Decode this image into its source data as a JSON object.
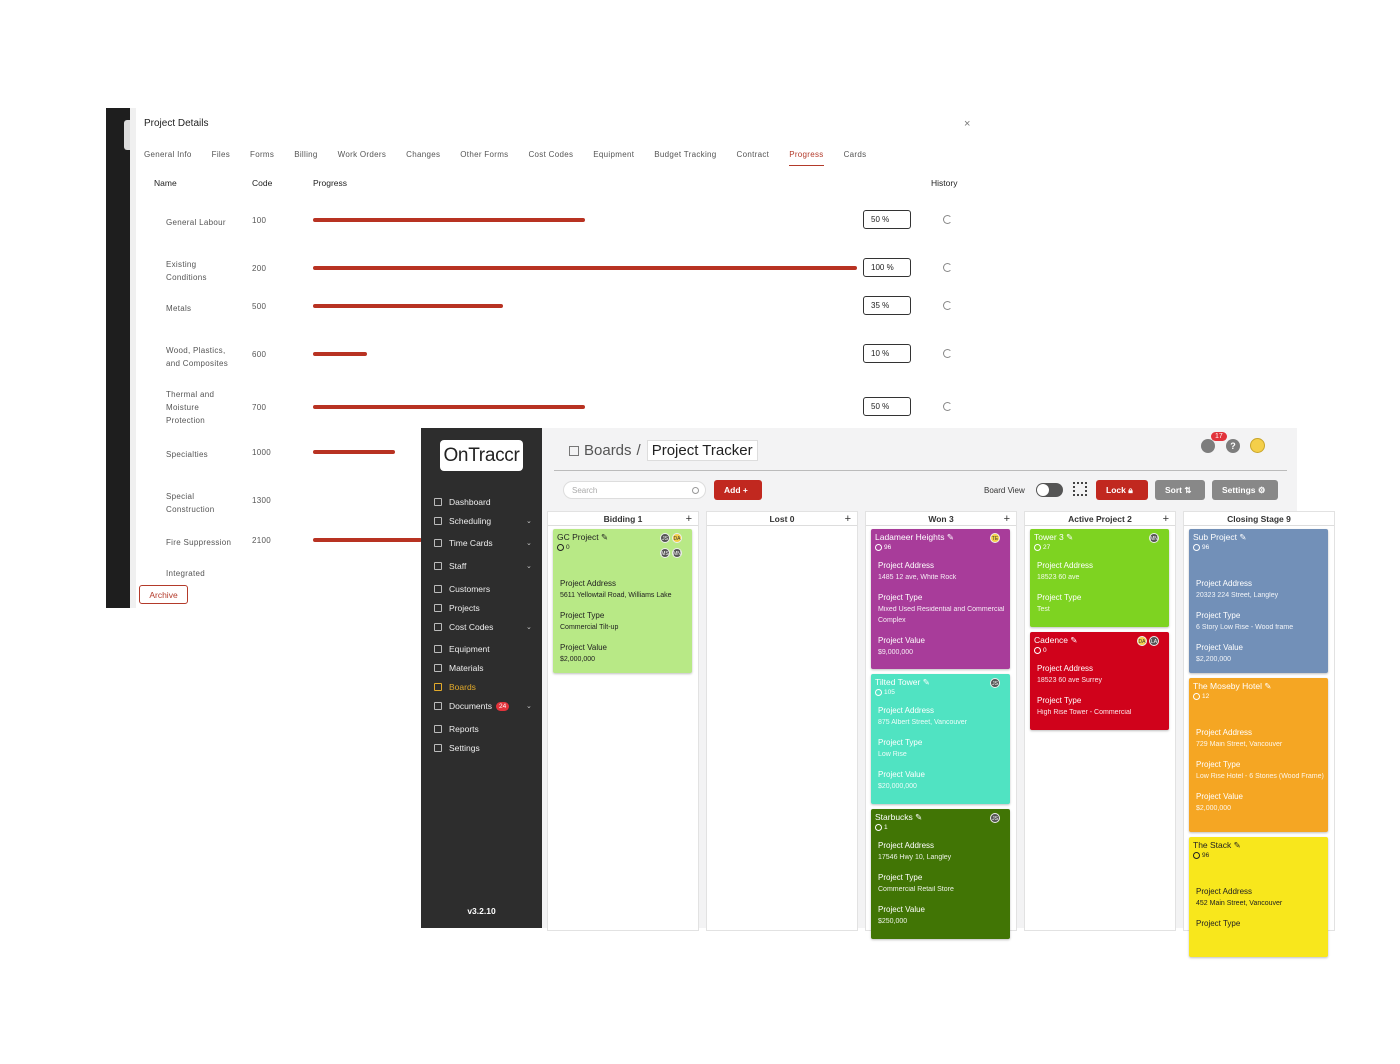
{
  "project_details": {
    "title": "Project Details",
    "close": "×",
    "tabs": [
      "General Info",
      "Files",
      "Forms",
      "Billing",
      "Work Orders",
      "Changes",
      "Other Forms",
      "Cost Codes",
      "Equipment",
      "Budget Tracking",
      "Contract",
      "Progress",
      "Cards"
    ],
    "active_tab": "Progress",
    "headers": {
      "name": "Name",
      "code": "Code",
      "progress": "Progress",
      "history": "History"
    },
    "rows": [
      {
        "name": "General Labour",
        "code": "100",
        "progress": 50,
        "progress_label": "50 %"
      },
      {
        "name": "Existing Conditions",
        "code": "200",
        "progress": 100,
        "progress_label": "100 %"
      },
      {
        "name": "Metals",
        "code": "500",
        "progress": 35,
        "progress_label": "35 %"
      },
      {
        "name": "Wood, Plastics, and Composites",
        "code": "600",
        "progress": 10,
        "progress_label": "10 %"
      },
      {
        "name": "Thermal and Moisture Protection",
        "code": "700",
        "progress": 50,
        "progress_label": "50 %"
      },
      {
        "name": "Specialties",
        "code": "1000",
        "progress": 15,
        "progress_label": ""
      },
      {
        "name": "Special Construction",
        "code": "1300",
        "progress": 0,
        "progress_label": ""
      },
      {
        "name": "Fire Suppression",
        "code": "2100",
        "progress": 20,
        "progress_label": ""
      },
      {
        "name": "Integrated",
        "code": "",
        "progress": 0,
        "progress_label": ""
      }
    ],
    "archive_label": "Archive"
  },
  "boards": {
    "logo_pre": "On",
    "logo_post": "Traccr",
    "version": "v3.2.10",
    "nav": [
      {
        "label": "Dashboard",
        "chevron": false,
        "badge": "",
        "active": false
      },
      {
        "label": "Scheduling",
        "chevron": true,
        "badge": "",
        "active": false
      },
      {
        "label": "Time Cards",
        "chevron": true,
        "badge": "",
        "active": false
      },
      {
        "label": "Staff",
        "chevron": true,
        "badge": "",
        "active": false
      },
      {
        "label": "Customers",
        "chevron": false,
        "badge": "",
        "active": false
      },
      {
        "label": "Projects",
        "chevron": false,
        "badge": "",
        "active": false
      },
      {
        "label": "Cost Codes",
        "chevron": true,
        "badge": "",
        "active": false
      },
      {
        "label": "Equipment",
        "chevron": false,
        "badge": "",
        "active": false
      },
      {
        "label": "Materials",
        "chevron": false,
        "badge": "",
        "active": false
      },
      {
        "label": "Boards",
        "chevron": false,
        "badge": "",
        "active": true
      },
      {
        "label": "Documents",
        "chevron": true,
        "badge": "24",
        "active": false
      },
      {
        "label": "Reports",
        "chevron": false,
        "badge": "",
        "active": false
      },
      {
        "label": "Settings",
        "chevron": false,
        "badge": "",
        "active": false
      }
    ],
    "breadcrumb_root": "Boards",
    "breadcrumb_sep": "/",
    "breadcrumb_current": "Project Tracker",
    "notification_count": "17",
    "help": "?",
    "search_placeholder": "Search",
    "add_label": "Add  +",
    "board_view_label": "Board View",
    "lock_label": "Lock",
    "sort_label": "Sort",
    "settings_label": "Settings",
    "columns": [
      {
        "title": "Bidding 1",
        "plus": "+",
        "cards": [
          {
            "title": "GC Project",
            "count": "0",
            "color": "#b8e986",
            "text": "#222",
            "avatars": [
              "JS",
              "DA",
              "MS",
              "MN"
            ],
            "fields": [
              [
                "Project Address",
                "5611 Yellowtail Road, Williams Lake"
              ],
              [
                "Project Type",
                "Commercial Tilt-up"
              ],
              [
                "Project Value",
                "$2,000,000"
              ]
            ]
          }
        ]
      },
      {
        "title": "Lost 0",
        "plus": "+",
        "cards": []
      },
      {
        "title": "Won 3",
        "plus": "+",
        "cards": [
          {
            "title": "Ladameer Heights",
            "count": "96",
            "color": "#a83c9a",
            "text": "#fff",
            "avatars": [
              "TE"
            ],
            "fields": [
              [
                "Project Address",
                "1485 12 ave, White Rock"
              ],
              [
                "Project Type",
                "Mixed Used Residential and Commercial Complex"
              ],
              [
                "Project Value",
                "$9,000,000"
              ]
            ]
          },
          {
            "title": "Tilted Tower",
            "count": "105",
            "color": "#50e3c2",
            "text": "#fff",
            "avatars": [
              "JS"
            ],
            "fields": [
              [
                "Project Address",
                "875 Albert Street, Vancouver"
              ],
              [
                "Project Type",
                "Low Rise"
              ],
              [
                "Project Value",
                "$20,000,000"
              ]
            ]
          },
          {
            "title": "Starbucks",
            "count": "1",
            "color": "#417505",
            "text": "#fff",
            "avatars": [
              "JS"
            ],
            "fields": [
              [
                "Project Address",
                "17546 Hwy 10, Langley"
              ],
              [
                "Project Type",
                "Commercial Retail Store"
              ],
              [
                "Project Value",
                "$250,000"
              ]
            ]
          }
        ]
      },
      {
        "title": "Active Project 2",
        "plus": "+",
        "cards": [
          {
            "title": "Tower 3",
            "count": "27",
            "color": "#7ed321",
            "text": "#fff",
            "avatars": [
              "MN"
            ],
            "fields": [
              [
                "Project Address",
                "18523 60 ave"
              ],
              [
                "Project Type",
                "Test"
              ]
            ]
          },
          {
            "title": "Cadence",
            "count": "0",
            "color": "#d0021b",
            "text": "#fff",
            "avatars": [
              "DA",
              "LA"
            ],
            "fields": [
              [
                "Project Address",
                "18523 60 ave Surrey"
              ],
              [
                "Project Type",
                "High Rise Tower - Commercial"
              ]
            ]
          }
        ]
      },
      {
        "title": "Closing Stage 9",
        "plus": "",
        "cards": [
          {
            "title": "Sub Project",
            "count": "96",
            "color": "#7290b8",
            "text": "#fff",
            "avatars": [],
            "fields": [
              [
                "Project Address",
                "20323 224 Street, Langley"
              ],
              [
                "Project Type",
                "6 Story Low Rise - Wood frame"
              ],
              [
                "Project Value",
                "$2,200,000"
              ]
            ]
          },
          {
            "title": "The Moseby Hotel",
            "count": "12",
            "color": "#f5a623",
            "text": "#fff",
            "avatars": [],
            "fields": [
              [
                "Project Address",
                "729 Main Street, Vancouver"
              ],
              [
                "Project Type",
                "Low Rise Hotel - 6 Stories (Wood Frame)"
              ],
              [
                "Project Value",
                "$2,000,000"
              ]
            ]
          },
          {
            "title": "The Stack",
            "count": "96",
            "color": "#f8e71c",
            "text": "#222",
            "avatars": [],
            "fields": [
              [
                "Project Address",
                "452 Main Street, Vancouver"
              ],
              [
                "Project Type",
                ""
              ]
            ]
          }
        ]
      }
    ]
  }
}
